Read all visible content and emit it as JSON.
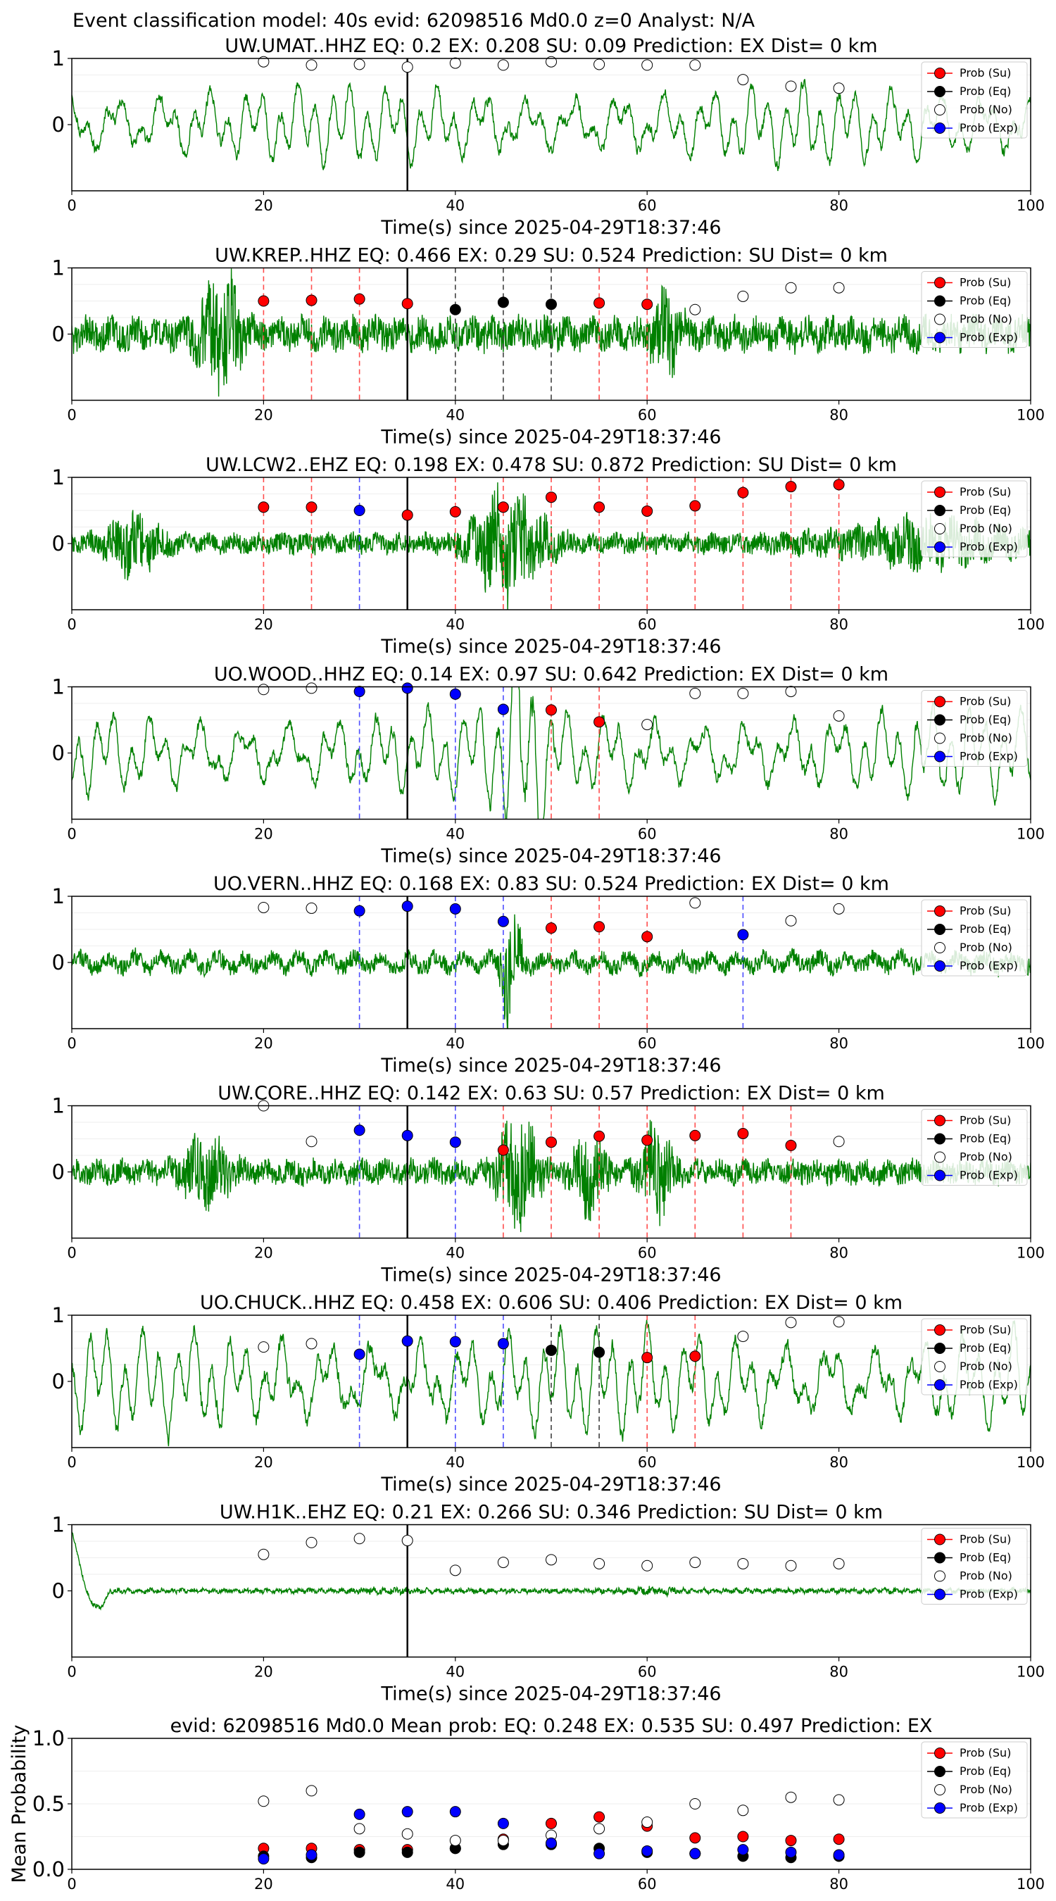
{
  "figure": {
    "suptitle": "Event classification model: 40s evid: 62098516 Md0.0 z=0 Analyst: N/A",
    "xlabel": "Time(s) since 2025-04-29T18:37:46",
    "legend": [
      "Prob (Su)",
      "Prob (Eq)",
      "Prob (No)",
      "Prob (Exp)"
    ],
    "colors": {
      "waveform": "#008000",
      "su": "#ff0000",
      "eq": "#000000",
      "no": "#ffffff",
      "exp": "#0000ff",
      "vline_su": "#ff4d4d",
      "vline_eq": "#404040",
      "vline_exp": "#4d4dff",
      "axis": "#000000"
    }
  },
  "chart_data": [
    {
      "type": "line",
      "title": "UW.UMAT..HHZ   EQ: 0.2   EX: 0.208   SU: 0.09   Prediction: EX    Dist= 0 km",
      "xlim": [
        0,
        100
      ],
      "ylim": [
        -1,
        1
      ],
      "xticks": [
        "0",
        "20",
        "40",
        "60",
        "80",
        "100"
      ],
      "yticks": [
        "0",
        "1"
      ],
      "pick_time": 35,
      "waveform": {
        "style": "lowfreq",
        "amp": 0.45,
        "seed": 3
      },
      "windows": [
        20,
        25,
        30,
        35,
        40,
        45,
        50,
        55,
        60,
        65,
        70,
        75,
        80
      ],
      "classes": [
        "no",
        "no",
        "no",
        "no",
        "no",
        "no",
        "no",
        "no",
        "no",
        "no",
        "no",
        "no",
        "no"
      ],
      "values": [
        0.95,
        0.9,
        0.91,
        0.87,
        0.93,
        0.9,
        0.95,
        0.91,
        0.9,
        0.9,
        0.68,
        0.58,
        0.55
      ]
    },
    {
      "type": "line",
      "title": "UW.KREP..HHZ   EQ: 0.466   EX: 0.29   SU: 0.524   Prediction: SU    Dist= 0 km",
      "xlim": [
        0,
        100
      ],
      "ylim": [
        -1,
        1
      ],
      "xticks": [
        "0",
        "20",
        "40",
        "60",
        "80",
        "100"
      ],
      "yticks": [
        "0",
        "1"
      ],
      "pick_time": 35,
      "waveform": {
        "style": "broadband",
        "amp": 0.25,
        "seed": 7,
        "bursts": [
          [
            13,
            18,
            0.6
          ],
          [
            60,
            64,
            0.3
          ]
        ]
      },
      "windows": [
        20,
        25,
        30,
        35,
        40,
        45,
        50,
        55,
        60,
        65,
        70,
        75,
        80
      ],
      "classes": [
        "su",
        "su",
        "su",
        "su",
        "eq",
        "eq",
        "eq",
        "su",
        "su",
        "no",
        "no",
        "no",
        "no"
      ],
      "values": [
        0.5,
        0.51,
        0.53,
        0.46,
        0.37,
        0.48,
        0.45,
        0.47,
        0.45,
        0.37,
        0.57,
        0.7,
        0.7
      ]
    },
    {
      "type": "line",
      "title": "UW.LCW2..EHZ   EQ: 0.198   EX: 0.478   SU: 0.872   Prediction: SU    Dist= 0 km",
      "xlim": [
        0,
        100
      ],
      "ylim": [
        -1,
        1
      ],
      "xticks": [
        "0",
        "20",
        "40",
        "60",
        "80",
        "100"
      ],
      "yticks": [
        "0",
        "1"
      ],
      "pick_time": 35,
      "waveform": {
        "style": "broadband",
        "amp": 0.15,
        "seed": 11,
        "bursts": [
          [
            3,
            10,
            0.45
          ],
          [
            41,
            50,
            0.95
          ],
          [
            78,
            100,
            0.35
          ]
        ]
      },
      "windows": [
        20,
        25,
        30,
        35,
        40,
        45,
        50,
        55,
        60,
        65,
        70,
        75,
        80
      ],
      "classes": [
        "su",
        "su",
        "exp",
        "su",
        "su",
        "su",
        "su",
        "su",
        "su",
        "su",
        "su",
        "su",
        "su"
      ],
      "values": [
        0.55,
        0.55,
        0.5,
        0.43,
        0.48,
        0.55,
        0.7,
        0.55,
        0.49,
        0.57,
        0.77,
        0.86,
        0.89
      ]
    },
    {
      "type": "line",
      "title": "UO.WOOD..HHZ   EQ: 0.14   EX: 0.97   SU: 0.642   Prediction: EX    Dist= 0 km",
      "xlim": [
        0,
        100
      ],
      "ylim": [
        -1,
        1
      ],
      "xticks": [
        "0",
        "20",
        "40",
        "60",
        "80",
        "100"
      ],
      "yticks": [
        "0",
        "1"
      ],
      "pick_time": 35,
      "waveform": {
        "style": "lowfreq",
        "amp": 0.5,
        "seed": 19,
        "bursts": [
          [
            44,
            50,
            0.35
          ]
        ]
      },
      "windows": [
        20,
        25,
        30,
        35,
        40,
        45,
        50,
        55,
        60,
        65,
        70,
        75,
        80
      ],
      "classes": [
        "no",
        "no",
        "exp",
        "exp",
        "exp",
        "exp",
        "su",
        "su",
        "no",
        "no",
        "no",
        "no",
        "no"
      ],
      "values": [
        0.96,
        0.98,
        0.93,
        0.98,
        0.89,
        0.66,
        0.65,
        0.47,
        0.43,
        0.9,
        0.9,
        0.93,
        0.56
      ]
    },
    {
      "type": "line",
      "title": "UO.VERN..HHZ   EQ: 0.168   EX: 0.83   SU: 0.524   Prediction: EX    Dist= 0 km",
      "xlim": [
        0,
        100
      ],
      "ylim": [
        -1,
        1
      ],
      "xticks": [
        "0",
        "20",
        "40",
        "60",
        "80",
        "100"
      ],
      "yticks": [
        "0",
        "1"
      ],
      "pick_time": 35,
      "waveform": {
        "style": "mixed",
        "amp": 0.17,
        "seed": 23,
        "bursts": [
          [
            44.5,
            47,
            0.95
          ]
        ]
      },
      "windows": [
        20,
        25,
        30,
        35,
        40,
        45,
        50,
        55,
        60,
        65,
        70,
        75,
        80
      ],
      "classes": [
        "no",
        "no",
        "exp",
        "exp",
        "exp",
        "exp",
        "su",
        "su",
        "su",
        "no",
        "exp",
        "no",
        "no"
      ],
      "values": [
        0.83,
        0.82,
        0.78,
        0.85,
        0.81,
        0.62,
        0.52,
        0.54,
        0.39,
        0.9,
        0.42,
        0.63,
        0.81
      ]
    },
    {
      "type": "line",
      "title": "UW.CORE..HHZ   EQ: 0.142   EX: 0.63   SU: 0.57   Prediction: EX    Dist= 0 km",
      "xlim": [
        0,
        100
      ],
      "ylim": [
        -1,
        1
      ],
      "xticks": [
        "0",
        "20",
        "40",
        "60",
        "80",
        "100"
      ],
      "yticks": [
        "0",
        "1"
      ],
      "pick_time": 35,
      "waveform": {
        "style": "broadband",
        "amp": 0.18,
        "seed": 29,
        "bursts": [
          [
            11,
            17,
            0.45
          ],
          [
            44,
            49,
            0.85
          ],
          [
            52,
            56,
            0.6
          ],
          [
            59,
            63,
            0.6
          ]
        ]
      },
      "windows": [
        20,
        25,
        30,
        35,
        40,
        45,
        50,
        55,
        60,
        65,
        70,
        75,
        80
      ],
      "classes": [
        "no",
        "no",
        "exp",
        "exp",
        "exp",
        "su",
        "su",
        "su",
        "su",
        "su",
        "su",
        "su",
        "no"
      ],
      "values": [
        1.0,
        0.46,
        0.63,
        0.55,
        0.45,
        0.33,
        0.45,
        0.54,
        0.48,
        0.55,
        0.58,
        0.4,
        0.46
      ]
    },
    {
      "type": "line",
      "title": "UO.CHUCK..HHZ   EQ: 0.458   EX: 0.606   SU: 0.406   Prediction: EX    Dist= 0 km",
      "xlim": [
        0,
        100
      ],
      "ylim": [
        -1,
        1
      ],
      "xticks": [
        "0",
        "20",
        "40",
        "60",
        "80",
        "100"
      ],
      "yticks": [
        "0",
        "1"
      ],
      "pick_time": 35,
      "waveform": {
        "style": "lowfreq",
        "amp": 0.6,
        "seed": 31
      },
      "windows": [
        20,
        25,
        30,
        35,
        40,
        45,
        50,
        55,
        60,
        65,
        70,
        75,
        80
      ],
      "classes": [
        "no",
        "no",
        "exp",
        "exp",
        "exp",
        "exp",
        "eq",
        "eq",
        "su",
        "su",
        "no",
        "no",
        "no"
      ],
      "values": [
        0.52,
        0.57,
        0.41,
        0.61,
        0.6,
        0.57,
        0.47,
        0.44,
        0.36,
        0.38,
        0.68,
        0.89,
        0.9
      ]
    },
    {
      "type": "line",
      "title": "UW.H1K..EHZ   EQ: 0.21   EX: 0.266   SU: 0.346   Prediction: SU    Dist= 0 km",
      "xlim": [
        0,
        100
      ],
      "ylim": [
        -1,
        1
      ],
      "xticks": [
        "0",
        "20",
        "40",
        "60",
        "80",
        "100"
      ],
      "yticks": [
        "0",
        "1"
      ],
      "pick_time": 35,
      "waveform": {
        "style": "quiet",
        "amp": 0.04,
        "seed": 37,
        "bursts": [
          [
            28,
            36,
            0.1
          ],
          [
            58,
            64,
            0.17
          ]
        ]
      },
      "windows": [
        20,
        25,
        30,
        35,
        40,
        45,
        50,
        55,
        60,
        65,
        70,
        75,
        80
      ],
      "classes": [
        "no",
        "no",
        "no",
        "no",
        "no",
        "no",
        "no",
        "no",
        "no",
        "no",
        "no",
        "no",
        "no"
      ],
      "values": [
        0.55,
        0.73,
        0.79,
        0.76,
        0.31,
        0.43,
        0.47,
        0.41,
        0.38,
        0.43,
        0.41,
        0.38,
        0.41
      ]
    },
    {
      "type": "scatter",
      "title": "evid: 62098516  Md0.0   Mean prob:    EQ: 0.248  EX: 0.535  SU: 0.497   Prediction: EX",
      "ylabel": "Mean Probability",
      "xlim": [
        0,
        100
      ],
      "ylim": [
        0,
        1
      ],
      "xticks": [
        "0",
        "20",
        "40",
        "60",
        "80",
        "100"
      ],
      "yticks": [
        "0.0",
        "0.5",
        "1.0"
      ],
      "x": [
        20,
        25,
        30,
        35,
        40,
        45,
        50,
        55,
        60,
        65,
        70,
        75,
        80
      ],
      "series": [
        {
          "name": "Prob (Su)",
          "key": "su",
          "values": [
            0.16,
            0.16,
            0.15,
            0.15,
            0.16,
            0.23,
            0.35,
            0.4,
            0.33,
            0.24,
            0.25,
            0.22,
            0.23
          ]
        },
        {
          "name": "Prob (Eq)",
          "key": "eq",
          "values": [
            0.1,
            0.09,
            0.13,
            0.13,
            0.16,
            0.19,
            0.19,
            0.16,
            0.13,
            0.12,
            0.1,
            0.09,
            0.1
          ]
        },
        {
          "name": "Prob (No)",
          "key": "no",
          "values": [
            0.52,
            0.6,
            0.31,
            0.27,
            0.22,
            0.22,
            0.26,
            0.31,
            0.36,
            0.5,
            0.45,
            0.55,
            0.53
          ]
        },
        {
          "name": "Prob (Exp)",
          "key": "exp",
          "values": [
            0.08,
            0.11,
            0.42,
            0.44,
            0.44,
            0.35,
            0.2,
            0.12,
            0.14,
            0.12,
            0.15,
            0.13,
            0.11
          ]
        }
      ]
    }
  ]
}
